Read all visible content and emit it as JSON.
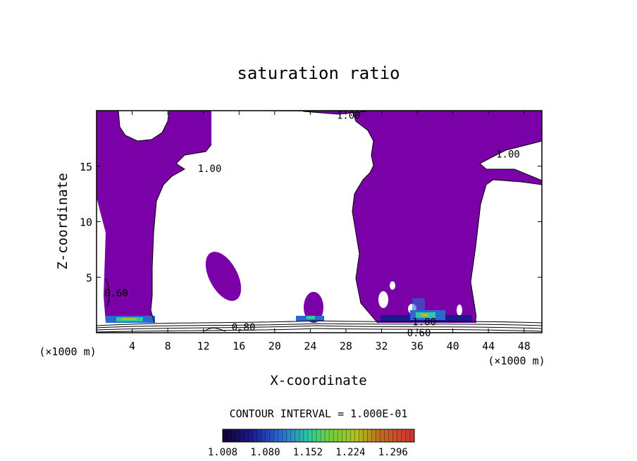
{
  "chart_data": {
    "type": "contour",
    "title": "saturation ratio",
    "xlabel": "X-coordinate",
    "ylabel": "Z-coordinate",
    "x_unit_left": "(×1000 m)",
    "x_unit_right": "(×1000 m)",
    "xlim": [
      0,
      50
    ],
    "ylim": [
      0,
      20
    ],
    "x_ticks": [
      4,
      8,
      12,
      16,
      20,
      24,
      28,
      32,
      36,
      40,
      44,
      48
    ],
    "y_ticks": [
      5,
      10,
      15
    ],
    "fill_color": "#7a00a8",
    "contour_labels": [
      {
        "text": "1.00",
        "x": 28.3,
        "y": 19.6
      },
      {
        "text": "1.00",
        "x": 12.7,
        "y": 14.8
      },
      {
        "text": "1.00",
        "x": 46.2,
        "y": 16.1
      },
      {
        "text": "1.00",
        "x": 36.8,
        "y": 1.0
      },
      {
        "text": "0.80",
        "x": 16.5,
        "y": 0.5
      },
      {
        "text": "0.60",
        "x": 36.2,
        "y": 0.0
      },
      {
        "text": "0.60",
        "x": 2.2,
        "y": 3.6
      }
    ],
    "contour_interval_text": "CONTOUR INTERVAL = 1.000E-01",
    "colorbar": {
      "min": 1.008,
      "max": 1.332,
      "tick_labels": [
        "1.008",
        "1.080",
        "1.152",
        "1.224",
        "1.296"
      ]
    }
  }
}
